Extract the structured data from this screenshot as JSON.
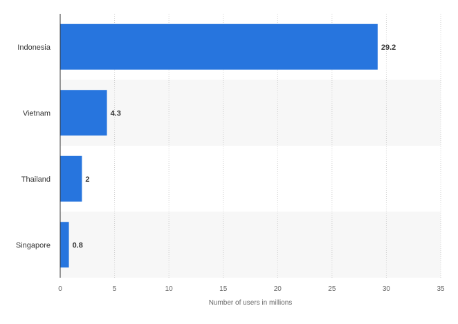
{
  "chart_data": {
    "type": "bar",
    "orientation": "horizontal",
    "categories": [
      "Indonesia",
      "Vietnam",
      "Thailand",
      "Singapore"
    ],
    "values": [
      29.2,
      4.3,
      2,
      0.8
    ],
    "value_labels": [
      "29.2",
      "4.3",
      "2",
      "0.8"
    ],
    "xlabel": "Number of users in millions",
    "xlim": [
      0,
      35
    ],
    "x_ticks": [
      0,
      5,
      10,
      15,
      20,
      25,
      30,
      35
    ],
    "x_tick_labels": [
      "0",
      "5",
      "10",
      "15",
      "20",
      "25",
      "30",
      "35"
    ],
    "grid": true,
    "alternating_row_shading": true,
    "colors": {
      "bar": "#2775de",
      "grid": "#cfcfcf",
      "axis": "#333333",
      "row_band": "#f7f7f7"
    }
  }
}
